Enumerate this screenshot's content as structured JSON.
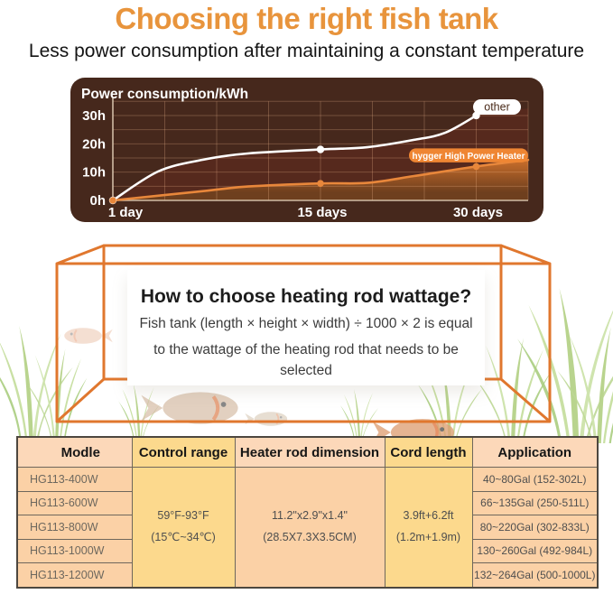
{
  "page": {
    "title": "Choosing the right fish tank",
    "subtitle": "Less power consumption after maintaining a constant temperature"
  },
  "colors": {
    "title_orange": "#E8943C",
    "chart_bg": "#46281C",
    "chart_grid": "rgba(255,195,150,0.25)",
    "chart_axis": "#E8D5BC",
    "series_other": "#FFFFFF",
    "series_hygger": "#E8873B",
    "other_pill_bg": "#FFFFFF",
    "other_pill_text": "#4A2B1A",
    "hygger_pill_bg": "#EF8633",
    "maroon_fill": "#56291D",
    "orange_fill_top": "#C96E2B",
    "orange_fill_bottom": "#6E3F1E",
    "tank_line": "#E0772E"
  },
  "chart_data": {
    "type": "line",
    "title": "Power consumption/kWh",
    "x_tick_labels": [
      "1 day",
      "15 days",
      "30 days"
    ],
    "x_tick_days": [
      1,
      15,
      30
    ],
    "x_tick_grid_index": [
      0,
      4,
      7
    ],
    "grid_columns": 8,
    "y_tick_labels": [
      "0h",
      "10h",
      "20h",
      "30h"
    ],
    "y_tick_values": [
      0,
      10,
      20,
      30
    ],
    "ylim": [
      0,
      35
    ],
    "y_grid_step": 5,
    "legend": [
      "other",
      "hygger High Power Heater"
    ],
    "series": [
      {
        "name": "other",
        "color": "#FFFFFF",
        "points_days": [
          1,
          15,
          30
        ],
        "points_hours": [
          0,
          18,
          30
        ],
        "marker_gu": [
          0,
          4,
          7
        ],
        "marker_hours": [
          0,
          18,
          30
        ],
        "curve_gu": [
          0,
          0.87,
          1.74,
          2.6,
          4,
          4.9,
          5.8,
          6.4,
          7
        ],
        "curve_hours": [
          0,
          10.2,
          14.4,
          16.6,
          18,
          18.8,
          21.4,
          23.9,
          30
        ],
        "area_ext_gu": 8,
        "area_ext_hours": 32.5
      },
      {
        "name": "hygger High Power Heater",
        "color": "#E8873B",
        "points_days": [
          1,
          15,
          30
        ],
        "points_hours": [
          0,
          6,
          12
        ],
        "marker_gu": [
          0,
          4,
          7
        ],
        "marker_hours": [
          0,
          6,
          12
        ],
        "curve_gu": [
          0,
          1.74,
          2.6,
          4,
          4.9,
          5.8,
          7,
          8
        ],
        "curve_hours": [
          0,
          3.3,
          4.9,
          6,
          6.2,
          8.6,
          12,
          14.3
        ]
      }
    ]
  },
  "tank": {
    "heading": "How to choose heating rod wattage?",
    "line1": "Fish tank (length × height × width) ÷ 1000 × 2 is equal",
    "line2": "to the wattage of the heating rod that needs to be selected"
  },
  "table": {
    "headers": [
      "Modle",
      "Control range",
      "Heater rod dimension",
      "Cord length",
      "Application"
    ],
    "rows": [
      {
        "model": "HG113-400W",
        "application": "40~80Gal (152-302L)"
      },
      {
        "model": "HG113-600W",
        "application": "66~135Gal (250-511L)"
      },
      {
        "model": "HG113-800W",
        "application": "80~220Gal (302-833L)"
      },
      {
        "model": "HG113-1000W",
        "application": "130~260Gal (492-984L)"
      },
      {
        "model": "HG113-1200W",
        "application": "132~264Gal (500-1000L)"
      }
    ],
    "control_range": [
      "59°F-93°F",
      "(15℃~34℃)"
    ],
    "heater_rod_dimension": [
      "11.2\"x2.9\"x1.4\"",
      "(28.5X7.3X3.5CM)"
    ],
    "cord_length": [
      "3.9ft+6.2ft",
      "(1.2m+1.9m)"
    ]
  }
}
